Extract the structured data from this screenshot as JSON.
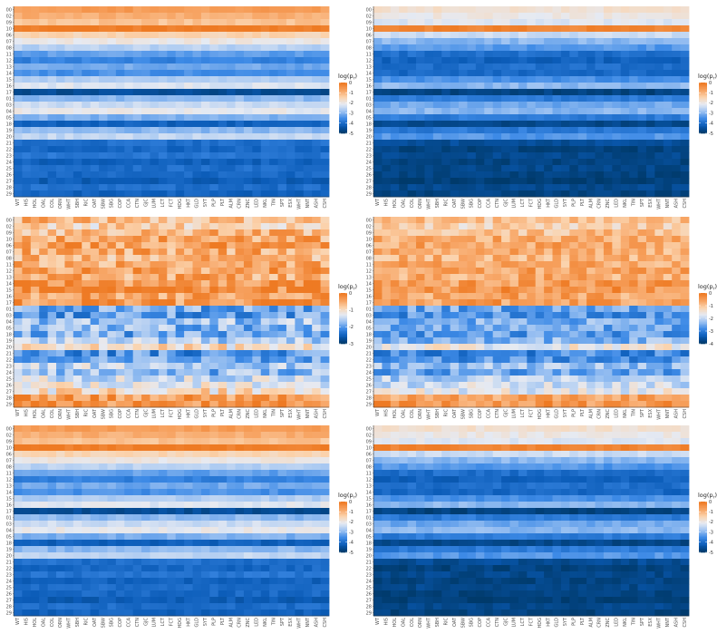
{
  "chart_data": [
    {
      "type": "heatmap",
      "panel": "top-left",
      "x": [
        "WT",
        "HIS",
        "HOL",
        "OAL",
        "COL",
        "ORN",
        "WHT",
        "SBH",
        "RIC",
        "OAT",
        "SBW",
        "SBG",
        "COP",
        "CCA",
        "CTN",
        "GJC",
        "LUM",
        "LCT",
        "FCT",
        "HDG",
        "HKT",
        "GLD",
        "SYT",
        "PLP",
        "PLT",
        "ALM",
        "CRN",
        "ZNC",
        "LED",
        "NKL",
        "TIN",
        "SPT",
        "ESX",
        "WHT",
        "NNT",
        "ASH",
        "CSH"
      ],
      "y": [
        "00",
        "02",
        "09",
        "10",
        "06",
        "07",
        "08",
        "11",
        "12",
        "13",
        "14",
        "15",
        "16",
        "17",
        "01",
        "03",
        "04",
        "05",
        "18",
        "19",
        "20",
        "21",
        "22",
        "23",
        "24",
        "25",
        "26",
        "27",
        "28",
        "29"
      ],
      "colorbar": {
        "title": "log(p",
        "title_sub": "r",
        "title_end": ")",
        "ticks": [
          "0",
          "-1",
          "-2",
          "-3",
          "-4",
          "-5"
        ],
        "range": [
          -5,
          0
        ]
      },
      "row_values": [
        -0.6,
        -0.9,
        -1.2,
        -0.05,
        -1.5,
        -2.0,
        -2.6,
        -3.3,
        -3.7,
        -3.2,
        -3.5,
        -2.7,
        -2.2,
        -4.6,
        -3.0,
        -2.4,
        -2.1,
        -3.1,
        -4.2,
        -3.0,
        -2.5,
        -4.0,
        -4.1,
        -3.9,
        -4.2,
        -4.0,
        -4.1,
        -4.3,
        -4.0,
        -4.2
      ]
    },
    {
      "type": "heatmap",
      "panel": "top-right",
      "x": [
        "WT",
        "HIS",
        "HOL",
        "OAL",
        "COL",
        "ORN",
        "WHT",
        "SBH",
        "RIC",
        "OAT",
        "SBW",
        "SBG",
        "COP",
        "CCA",
        "CTN",
        "GJC",
        "LUM",
        "LCT",
        "FCT",
        "HDG",
        "HKT",
        "GLD",
        "SYT",
        "PLP",
        "PLT",
        "ALM",
        "CRN",
        "ZNC",
        "LED",
        "NKL",
        "TIN",
        "SPT",
        "ESX",
        "WHT",
        "NNT",
        "ASH",
        "CSH"
      ],
      "y": [
        "00",
        "02",
        "09",
        "10",
        "06",
        "07",
        "08",
        "11",
        "12",
        "13",
        "14",
        "15",
        "16",
        "17",
        "01",
        "03",
        "04",
        "05",
        "18",
        "19",
        "20",
        "21",
        "22",
        "23",
        "24",
        "25",
        "26",
        "27",
        "28",
        "29"
      ],
      "colorbar": {
        "title": "log(p",
        "title_sub": "r",
        "title_end": ")",
        "ticks": [
          "0",
          "-1",
          "-2",
          "-3",
          "-4",
          "-5"
        ],
        "range": [
          -5,
          0
        ]
      },
      "row_values": [
        -1.8,
        -2.0,
        -2.2,
        -0.2,
        -2.4,
        -3.0,
        -3.4,
        -4.0,
        -4.2,
        -4.0,
        -4.1,
        -3.5,
        -3.0,
        -4.8,
        -3.8,
        -3.2,
        -3.0,
        -3.8,
        -4.7,
        -3.8,
        -3.4,
        -4.6,
        -4.8,
        -4.7,
        -4.8,
        -4.7,
        -4.8,
        -4.9,
        -4.7,
        -4.8
      ]
    },
    {
      "type": "heatmap",
      "panel": "middle-left",
      "x": [
        "WT",
        "HIS",
        "HOL",
        "OAL",
        "COL",
        "ORN",
        "WHT",
        "SBH",
        "RIC",
        "OAT",
        "SBW",
        "SBG",
        "COP",
        "CCA",
        "CTN",
        "GJC",
        "LUM",
        "LCT",
        "FCT",
        "HDG",
        "HKT",
        "GLD",
        "SYT",
        "PLP",
        "PLT",
        "ALM",
        "CRN",
        "ZNC",
        "LED",
        "NKL",
        "TIN",
        "SPT",
        "ESX",
        "WHT",
        "NNT",
        "ASH",
        "CSH"
      ],
      "y": [
        "00",
        "02",
        "09",
        "10",
        "06",
        "07",
        "08",
        "11",
        "12",
        "13",
        "14",
        "15",
        "16",
        "17",
        "01",
        "03",
        "04",
        "05",
        "18",
        "19",
        "20",
        "21",
        "22",
        "23",
        "24",
        "25",
        "26",
        "27",
        "28",
        "29"
      ],
      "colorbar": {
        "title": "log(p",
        "title_sub": "r",
        "title_end": ")",
        "ticks": [
          "0",
          "-1",
          "-2",
          "-3"
        ],
        "range": [
          -3,
          0
        ]
      },
      "row_values": [
        -0.6,
        -0.9,
        -0.6,
        -0.5,
        -0.4,
        -0.5,
        -0.6,
        -0.5,
        -0.4,
        -0.5,
        -0.3,
        -0.2,
        -0.4,
        -0.3,
        -1.9,
        -2.0,
        -1.7,
        -1.8,
        -1.9,
        -1.6,
        -1.0,
        -2.1,
        -2.0,
        -1.5,
        -1.8,
        -1.4,
        -1.2,
        -1.0,
        -0.3,
        -0.2
      ]
    },
    {
      "type": "heatmap",
      "panel": "middle-right",
      "x": [
        "WT",
        "HIS",
        "HOL",
        "OAL",
        "COL",
        "ORN",
        "WHT",
        "SBH",
        "RIC",
        "OAT",
        "SBW",
        "SBG",
        "COP",
        "CCA",
        "CTN",
        "GJC",
        "LUM",
        "LCT",
        "FCT",
        "HDG",
        "HKT",
        "GLD",
        "SYT",
        "PLP",
        "PLT",
        "ALM",
        "CRN",
        "ZNC",
        "LED",
        "NKL",
        "TIN",
        "SPT",
        "ESX",
        "WHT",
        "NNT",
        "ASH",
        "CSH"
      ],
      "y": [
        "00",
        "02",
        "09",
        "10",
        "06",
        "07",
        "08",
        "11",
        "12",
        "13",
        "14",
        "15",
        "16",
        "17",
        "01",
        "03",
        "04",
        "05",
        "18",
        "19",
        "20",
        "21",
        "22",
        "23",
        "24",
        "25",
        "26",
        "27",
        "28",
        "29"
      ],
      "colorbar": {
        "title": "log(p",
        "title_sub": "r",
        "title_end": ")",
        "ticks": [
          "0",
          "-1",
          "-2",
          "-3",
          "-4"
        ],
        "range": [
          -4,
          0
        ]
      },
      "row_values": [
        -1.0,
        -1.2,
        -0.9,
        -0.7,
        -0.6,
        -0.7,
        -0.8,
        -0.7,
        -0.6,
        -0.7,
        -0.5,
        -0.4,
        -0.6,
        -0.5,
        -2.6,
        -2.8,
        -2.5,
        -2.6,
        -2.7,
        -2.4,
        -1.6,
        -2.9,
        -2.8,
        -2.3,
        -2.6,
        -2.1,
        -1.9,
        -1.7,
        -0.6,
        -0.4
      ]
    },
    {
      "type": "heatmap",
      "panel": "bottom-left",
      "x": [
        "WT",
        "HIS",
        "HOL",
        "OAL",
        "COL",
        "ORN",
        "WHT",
        "SBH",
        "RIC",
        "OAT",
        "SBW",
        "SBG",
        "COP",
        "CCA",
        "CTN",
        "GJC",
        "LUM",
        "LCT",
        "FCT",
        "HDG",
        "HKT",
        "GLD",
        "SYT",
        "PLP",
        "PLT",
        "ALM",
        "CRN",
        "ZNC",
        "LED",
        "NKL",
        "TIN",
        "SPT",
        "ESX",
        "WHT",
        "NNT",
        "ASH",
        "CSH"
      ],
      "y": [
        "00",
        "02",
        "09",
        "10",
        "06",
        "07",
        "08",
        "11",
        "12",
        "13",
        "14",
        "15",
        "16",
        "17",
        "01",
        "03",
        "04",
        "05",
        "18",
        "19",
        "20",
        "21",
        "22",
        "23",
        "24",
        "25",
        "26",
        "27",
        "28",
        "29"
      ],
      "colorbar": {
        "title": "log(p",
        "title_sub": "r",
        "title_end": ")",
        "ticks": [
          "0",
          "-1",
          "-2",
          "-3",
          "-4",
          "-5"
        ],
        "range": [
          -5,
          0
        ]
      },
      "row_values": [
        -0.6,
        -0.9,
        -1.2,
        -0.05,
        -1.5,
        -2.0,
        -2.6,
        -3.3,
        -3.7,
        -3.2,
        -3.5,
        -2.7,
        -2.2,
        -4.6,
        -3.0,
        -2.4,
        -2.1,
        -3.1,
        -4.2,
        -3.0,
        -2.5,
        -4.0,
        -4.1,
        -3.9,
        -4.2,
        -4.0,
        -4.1,
        -4.3,
        -4.0,
        -4.2
      ]
    },
    {
      "type": "heatmap",
      "panel": "bottom-right",
      "x": [
        "WT",
        "HIS",
        "HOL",
        "OAL",
        "COL",
        "ORN",
        "WHT",
        "SBH",
        "RIC",
        "OAT",
        "SBW",
        "SBG",
        "COP",
        "CCA",
        "CTN",
        "GJC",
        "LUM",
        "LCT",
        "FCT",
        "HDG",
        "HKT",
        "GLD",
        "SYT",
        "PLP",
        "PLT",
        "ALM",
        "CRN",
        "ZNC",
        "LED",
        "NKL",
        "TIN",
        "SPT",
        "ESX",
        "WHT",
        "NNT",
        "ASH",
        "CSH"
      ],
      "y": [
        "00",
        "02",
        "09",
        "10",
        "06",
        "07",
        "08",
        "11",
        "12",
        "13",
        "14",
        "15",
        "16",
        "17",
        "01",
        "03",
        "04",
        "05",
        "18",
        "19",
        "20",
        "21",
        "22",
        "23",
        "24",
        "25",
        "26",
        "27",
        "28",
        "29"
      ],
      "colorbar": {
        "title": "log(p",
        "title_sub": "r",
        "title_end": ")",
        "ticks": [
          "0",
          "-1",
          "-2",
          "-3",
          "-4",
          "-5"
        ],
        "range": [
          -5,
          0
        ]
      },
      "row_values": [
        -1.8,
        -2.0,
        -2.2,
        -0.2,
        -2.4,
        -3.0,
        -3.4,
        -4.0,
        -4.2,
        -4.0,
        -4.1,
        -3.5,
        -3.0,
        -4.8,
        -3.8,
        -3.2,
        -3.0,
        -3.8,
        -4.7,
        -3.8,
        -3.4,
        -4.6,
        -4.8,
        -4.7,
        -4.8,
        -4.7,
        -4.8,
        -4.9,
        -4.7,
        -4.8
      ]
    }
  ],
  "colors": {
    "scale": [
      "#003a6b",
      "#0b5cb8",
      "#3d8ae6",
      "#9ec3f2",
      "#e6eaf2",
      "#fbd3ad",
      "#f7a260",
      "#ee7a23"
    ]
  }
}
